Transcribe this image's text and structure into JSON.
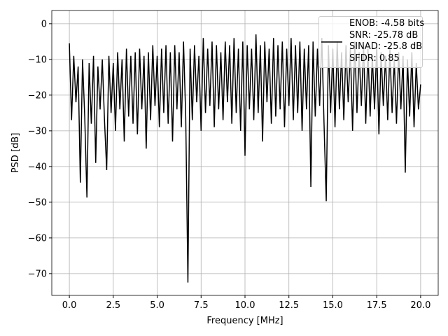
{
  "chart_data": {
    "type": "line",
    "xlabel": "Frequency [MHz]",
    "ylabel": "PSD [dB]",
    "x": [
      0,
      0.125,
      0.25,
      0.375,
      0.5,
      0.625,
      0.75,
      0.875,
      1,
      1.125,
      1.25,
      1.375,
      1.5,
      1.625,
      1.75,
      1.875,
      2,
      2.125,
      2.25,
      2.375,
      2.5,
      2.625,
      2.75,
      2.875,
      3,
      3.125,
      3.25,
      3.375,
      3.5,
      3.625,
      3.75,
      3.875,
      4,
      4.125,
      4.25,
      4.375,
      4.5,
      4.625,
      4.75,
      4.875,
      5,
      5.125,
      5.25,
      5.375,
      5.5,
      5.625,
      5.75,
      5.875,
      6,
      6.125,
      6.25,
      6.375,
      6.5,
      6.625,
      6.75,
      6.875,
      7,
      7.125,
      7.25,
      7.375,
      7.5,
      7.625,
      7.75,
      7.875,
      8,
      8.125,
      8.25,
      8.375,
      8.5,
      8.625,
      8.75,
      8.875,
      9,
      9.125,
      9.25,
      9.375,
      9.5,
      9.625,
      9.75,
      9.875,
      10,
      10.125,
      10.25,
      10.375,
      10.5,
      10.625,
      10.75,
      10.875,
      11,
      11.125,
      11.25,
      11.375,
      11.5,
      11.625,
      11.75,
      11.875,
      12,
      12.125,
      12.25,
      12.375,
      12.5,
      12.625,
      12.75,
      12.875,
      13,
      13.125,
      13.25,
      13.375,
      13.5,
      13.625,
      13.75,
      13.875,
      14,
      14.125,
      14.25,
      14.375,
      14.5,
      14.625,
      14.75,
      14.875,
      15,
      15.125,
      15.25,
      15.375,
      15.5,
      15.625,
      15.75,
      15.875,
      16,
      16.125,
      16.25,
      16.375,
      16.5,
      16.625,
      16.75,
      16.875,
      17,
      17.125,
      17.25,
      17.375,
      17.5,
      17.625,
      17.75,
      17.875,
      18,
      18.125,
      18.25,
      18.375,
      18.5,
      18.625,
      18.75,
      18.875,
      19,
      19.125,
      19.25,
      19.375,
      19.5,
      19.625,
      19.75,
      19.875,
      20
    ],
    "series": [
      {
        "name": "ENOB: -4.58 bits\nSNR: -25.78 dB\nSINAD: -25.8 dB\nSFDR: 0.85",
        "color": "#000000",
        "values": [
          -5.5,
          -27,
          -9,
          -22,
          -12,
          -44.5,
          -10,
          -26,
          -48.7,
          -11,
          -28,
          -9,
          -39,
          -12,
          -24,
          -10,
          -27,
          -41,
          -9,
          -25,
          -11,
          -30,
          -8,
          -24,
          -10,
          -33,
          -7,
          -26,
          -9,
          -28,
          -8,
          -31,
          -7,
          -24,
          -9,
          -35,
          -8,
          -27,
          -6,
          -23,
          -9,
          -29,
          -7,
          -25,
          -6,
          -28,
          -8,
          -33,
          -6,
          -24,
          -8,
          -29,
          -5,
          -26,
          -72.5,
          -7,
          -27,
          -6,
          -22,
          -9,
          -30,
          -4,
          -25,
          -7,
          -23,
          -5,
          -29,
          -6,
          -24,
          -8,
          -27,
          -5,
          -22,
          -6,
          -28,
          -4,
          -25,
          -7,
          -30,
          -5,
          -37,
          -6,
          -24,
          -7,
          -27,
          -3,
          -25,
          -6,
          -33,
          -5,
          -22,
          -7,
          -28,
          -4,
          -26,
          -6,
          -24,
          -5,
          -29,
          -7,
          -23,
          -4,
          -27,
          -6,
          -25,
          -5,
          -30,
          -7,
          -24,
          -6,
          -45.7,
          -5,
          -26,
          -7,
          -23,
          -4,
          -28,
          -49.7,
          -6,
          -25,
          -7,
          -29,
          -5,
          -24,
          -8,
          -27,
          -6,
          -22,
          -7,
          -30,
          -5,
          -25,
          -8,
          -23,
          -6,
          -28,
          -7,
          -26,
          -9,
          -24,
          -6,
          -31,
          -8,
          -23,
          -9,
          -27,
          -7,
          -25,
          -10,
          -28,
          -8,
          -24,
          -9,
          -41.7,
          -10,
          -26,
          -8,
          -29,
          -11,
          -24,
          -17
        ]
      }
    ],
    "xlim": [
      -1.0,
      21.0
    ],
    "xticks": [
      {
        "value": 0,
        "label": "0.0"
      },
      {
        "value": 2.5,
        "label": "2.5"
      },
      {
        "value": 5,
        "label": "5.0"
      },
      {
        "value": 7.5,
        "label": "7.5"
      },
      {
        "value": 10,
        "label": "10.0"
      },
      {
        "value": 12.5,
        "label": "12.5"
      },
      {
        "value": 15,
        "label": "15.0"
      },
      {
        "value": 17.5,
        "label": "17.5"
      },
      {
        "value": 20,
        "label": "20.0"
      }
    ],
    "ylim": [
      -76.1,
      3.7
    ],
    "yticks": [
      0,
      {
        "value": -10,
        "label": "−10"
      },
      {
        "value": -20,
        "label": "−20"
      },
      {
        "value": -30,
        "label": "−30"
      },
      {
        "value": -40,
        "label": "−40"
      },
      {
        "value": -50,
        "label": "−50"
      },
      {
        "value": -60,
        "label": "−60"
      },
      {
        "value": -70,
        "label": "−70"
      }
    ],
    "grid": true,
    "legend": "upper right"
  }
}
